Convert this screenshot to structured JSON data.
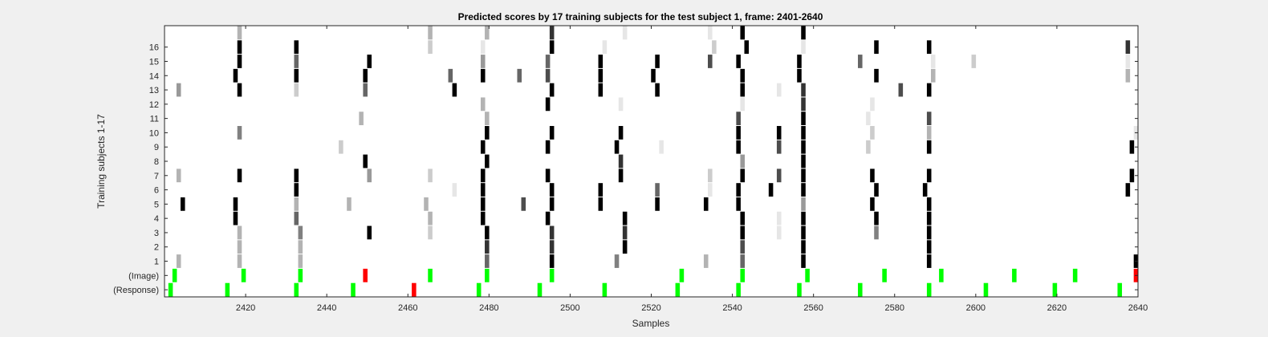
{
  "chart_data": {
    "type": "heatmap",
    "title": "Predicted scores by 17 training subjects for the test subject 1, frame: 2401-2640",
    "xlabel": "Samples",
    "ylabel": "Training subjects 1-17",
    "xlim": [
      2401,
      2640
    ],
    "x_ticks": [
      2420,
      2440,
      2460,
      2480,
      2500,
      2520,
      2540,
      2560,
      2580,
      2600,
      2620,
      2640
    ],
    "row_labels": [
      "(Response)",
      "(Image)",
      "1",
      "2",
      "3",
      "4",
      "5",
      "6",
      "7",
      "8",
      "9",
      "10",
      "11",
      "12",
      "13",
      "14",
      "15",
      "16",
      ""
    ],
    "colors": {
      "background": "#f0f0f0",
      "plot": "#ffffff",
      "green": "#00ff00",
      "red": "#ff0000",
      "frame": "#262626"
    },
    "response_markers": [
      {
        "x": 2402,
        "c": "green"
      },
      {
        "x": 2416,
        "c": "green"
      },
      {
        "x": 2433,
        "c": "green"
      },
      {
        "x": 2447,
        "c": "green"
      },
      {
        "x": 2462,
        "c": "red"
      },
      {
        "x": 2478,
        "c": "green"
      },
      {
        "x": 2493,
        "c": "green"
      },
      {
        "x": 2509,
        "c": "green"
      },
      {
        "x": 2527,
        "c": "green"
      },
      {
        "x": 2542,
        "c": "green"
      },
      {
        "x": 2557,
        "c": "green"
      },
      {
        "x": 2572,
        "c": "green"
      },
      {
        "x": 2589,
        "c": "green"
      },
      {
        "x": 2603,
        "c": "green"
      },
      {
        "x": 2620,
        "c": "green"
      },
      {
        "x": 2636,
        "c": "green"
      }
    ],
    "image_markers": [
      {
        "x": 2403,
        "c": "green"
      },
      {
        "x": 2420,
        "c": "green"
      },
      {
        "x": 2434,
        "c": "green"
      },
      {
        "x": 2450,
        "c": "red"
      },
      {
        "x": 2466,
        "c": "green"
      },
      {
        "x": 2480,
        "c": "green"
      },
      {
        "x": 2496,
        "c": "green"
      },
      {
        "x": 2528,
        "c": "green"
      },
      {
        "x": 2543,
        "c": "green"
      },
      {
        "x": 2559,
        "c": "green"
      },
      {
        "x": 2578,
        "c": "green"
      },
      {
        "x": 2592,
        "c": "green"
      },
      {
        "x": 2610,
        "c": "green"
      },
      {
        "x": 2625,
        "c": "green"
      },
      {
        "x": 2640,
        "c": "red"
      }
    ],
    "subject_scores": [
      {
        "subject": 1,
        "cells": [
          [
            2404,
            0.3
          ],
          [
            2419,
            0.3
          ],
          [
            2434,
            0.3
          ],
          [
            2480,
            0.6
          ],
          [
            2496,
            1
          ],
          [
            2512,
            0.5
          ],
          [
            2534,
            0.3
          ],
          [
            2543,
            0.6
          ],
          [
            2558,
            1
          ],
          [
            2589,
            1
          ],
          [
            2640,
            1
          ]
        ]
      },
      {
        "subject": 2,
        "cells": [
          [
            2419,
            0.3
          ],
          [
            2434,
            0.3
          ],
          [
            2480,
            0.8
          ],
          [
            2496,
            0.8
          ],
          [
            2514,
            1
          ],
          [
            2543,
            0.7
          ],
          [
            2558,
            1
          ],
          [
            2589,
            1
          ]
        ]
      },
      {
        "subject": 3,
        "cells": [
          [
            2419,
            0.3
          ],
          [
            2434,
            0.5
          ],
          [
            2451,
            1
          ],
          [
            2466,
            0.2
          ],
          [
            2480,
            1
          ],
          [
            2496,
            0.8
          ],
          [
            2514,
            0.8
          ],
          [
            2543,
            1
          ],
          [
            2552,
            0.1
          ],
          [
            2558,
            1
          ],
          [
            2576,
            0.5
          ],
          [
            2589,
            1
          ]
        ]
      },
      {
        "subject": 4,
        "cells": [
          [
            2418,
            1
          ],
          [
            2433,
            0.6
          ],
          [
            2466,
            0.3
          ],
          [
            2479,
            1
          ],
          [
            2495,
            1
          ],
          [
            2514,
            1
          ],
          [
            2543,
            1
          ],
          [
            2552,
            0.1
          ],
          [
            2558,
            1
          ],
          [
            2576,
            1
          ],
          [
            2589,
            1
          ]
        ]
      },
      {
        "subject": 5,
        "cells": [
          [
            2405,
            1
          ],
          [
            2418,
            1
          ],
          [
            2433,
            0.3
          ],
          [
            2446,
            0.3
          ],
          [
            2465,
            0.3
          ],
          [
            2479,
            1
          ],
          [
            2489,
            0.7
          ],
          [
            2496,
            1
          ],
          [
            2508,
            1
          ],
          [
            2522,
            1
          ],
          [
            2534,
            1
          ],
          [
            2542,
            1
          ],
          [
            2558,
            0.4
          ],
          [
            2575,
            1
          ],
          [
            2589,
            1
          ]
        ]
      },
      {
        "subject": 6,
        "cells": [
          [
            2433,
            1
          ],
          [
            2472,
            0.1
          ],
          [
            2479,
            1
          ],
          [
            2496,
            1
          ],
          [
            2508,
            1
          ],
          [
            2522,
            0.6
          ],
          [
            2535,
            0.1
          ],
          [
            2542,
            1
          ],
          [
            2550,
            1
          ],
          [
            2558,
            1
          ],
          [
            2576,
            1
          ],
          [
            2588,
            1
          ],
          [
            2638,
            1
          ]
        ]
      },
      {
        "subject": 7,
        "cells": [
          [
            2404,
            0.3
          ],
          [
            2419,
            1
          ],
          [
            2433,
            1
          ],
          [
            2451,
            0.4
          ],
          [
            2466,
            0.2
          ],
          [
            2479,
            1
          ],
          [
            2495,
            1
          ],
          [
            2513,
            1
          ],
          [
            2535,
            0.2
          ],
          [
            2543,
            1
          ],
          [
            2552,
            0.7
          ],
          [
            2558,
            1
          ],
          [
            2575,
            1
          ],
          [
            2589,
            1
          ],
          [
            2639,
            1
          ]
        ]
      },
      {
        "subject": 8,
        "cells": [
          [
            2450,
            1
          ],
          [
            2480,
            1
          ],
          [
            2513,
            0.8
          ],
          [
            2543,
            0.4
          ],
          [
            2558,
            1
          ]
        ]
      },
      {
        "subject": 9,
        "cells": [
          [
            2444,
            0.2
          ],
          [
            2479,
            1
          ],
          [
            2495,
            1
          ],
          [
            2512,
            1
          ],
          [
            2523,
            0.1
          ],
          [
            2542,
            1
          ],
          [
            2552,
            0.7
          ],
          [
            2558,
            1
          ],
          [
            2574,
            0.2
          ],
          [
            2589,
            1
          ],
          [
            2639,
            1
          ]
        ]
      },
      {
        "subject": 10,
        "cells": [
          [
            2419,
            0.5
          ],
          [
            2480,
            1
          ],
          [
            2496,
            1
          ],
          [
            2513,
            1
          ],
          [
            2542,
            1
          ],
          [
            2552,
            1
          ],
          [
            2558,
            1
          ],
          [
            2575,
            0.2
          ],
          [
            2589,
            0.3
          ],
          [
            2640,
            0.1
          ]
        ]
      },
      {
        "subject": 11,
        "cells": [
          [
            2449,
            0.3
          ],
          [
            2480,
            0.3
          ],
          [
            2542,
            0.7
          ],
          [
            2558,
            1
          ],
          [
            2574,
            0.1
          ],
          [
            2589,
            0.7
          ]
        ]
      },
      {
        "subject": 12,
        "cells": [
          [
            2479,
            0.3
          ],
          [
            2495,
            1
          ],
          [
            2513,
            0.1
          ],
          [
            2543,
            0.1
          ],
          [
            2558,
            0.8
          ],
          [
            2575,
            0.1
          ]
        ]
      },
      {
        "subject": 13,
        "cells": [
          [
            2404,
            0.4
          ],
          [
            2419,
            1
          ],
          [
            2433,
            0.2
          ],
          [
            2450,
            0.6
          ],
          [
            2472,
            1
          ],
          [
            2496,
            1
          ],
          [
            2508,
            1
          ],
          [
            2522,
            1
          ],
          [
            2543,
            1
          ],
          [
            2552,
            0.1
          ],
          [
            2558,
            0.8
          ],
          [
            2582,
            0.7
          ],
          [
            2589,
            1
          ]
        ]
      },
      {
        "subject": 14,
        "cells": [
          [
            2418,
            1
          ],
          [
            2433,
            1
          ],
          [
            2450,
            1
          ],
          [
            2471,
            0.6
          ],
          [
            2479,
            1
          ],
          [
            2488,
            0.6
          ],
          [
            2495,
            0.7
          ],
          [
            2508,
            1
          ],
          [
            2521,
            1
          ],
          [
            2543,
            1
          ],
          [
            2557,
            1
          ],
          [
            2576,
            1
          ],
          [
            2590,
            0.3
          ],
          [
            2638,
            0.3
          ]
        ]
      },
      {
        "subject": 15,
        "cells": [
          [
            2419,
            1
          ],
          [
            2433,
            0.6
          ],
          [
            2451,
            1
          ],
          [
            2479,
            0.4
          ],
          [
            2495,
            0.6
          ],
          [
            2508,
            1
          ],
          [
            2522,
            1
          ],
          [
            2535,
            0.7
          ],
          [
            2542,
            1
          ],
          [
            2557,
            1
          ],
          [
            2572,
            0.6
          ],
          [
            2590,
            0.1
          ],
          [
            2600,
            0.2
          ],
          [
            2638,
            0.1
          ]
        ]
      },
      {
        "subject": 16,
        "cells": [
          [
            2419,
            1
          ],
          [
            2433,
            1
          ],
          [
            2466,
            0.2
          ],
          [
            2479,
            0.1
          ],
          [
            2496,
            1
          ],
          [
            2509,
            0.1
          ],
          [
            2536,
            0.2
          ],
          [
            2544,
            1
          ],
          [
            2558,
            0.1
          ],
          [
            2576,
            1
          ],
          [
            2589,
            1
          ],
          [
            2638,
            0.8
          ]
        ]
      },
      {
        "subject": 17,
        "cells": [
          [
            2419,
            0.3
          ],
          [
            2466,
            0.3
          ],
          [
            2480,
            0.3
          ],
          [
            2496,
            0.8
          ],
          [
            2514,
            0.1
          ],
          [
            2535,
            0.1
          ],
          [
            2543,
            1
          ],
          [
            2558,
            1
          ]
        ]
      }
    ]
  }
}
